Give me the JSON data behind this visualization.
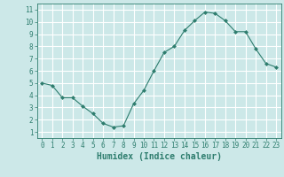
{
  "x": [
    0,
    1,
    2,
    3,
    4,
    5,
    6,
    7,
    8,
    9,
    10,
    11,
    12,
    13,
    14,
    15,
    16,
    17,
    18,
    19,
    20,
    21,
    22,
    23
  ],
  "y": [
    5.0,
    4.8,
    3.8,
    3.8,
    3.1,
    2.5,
    1.7,
    1.4,
    1.5,
    3.3,
    4.4,
    6.0,
    7.5,
    8.0,
    9.3,
    10.1,
    10.8,
    10.7,
    10.1,
    9.2,
    9.2,
    7.8,
    6.6,
    6.3
  ],
  "line_color": "#2e7d6e",
  "marker": "D",
  "marker_size": 2,
  "bg_color": "#cce8e8",
  "grid_color": "#ffffff",
  "xlabel": "Humidex (Indice chaleur)",
  "xlim": [
    -0.5,
    23.5
  ],
  "ylim": [
    0.5,
    11.5
  ],
  "yticks": [
    1,
    2,
    3,
    4,
    5,
    6,
    7,
    8,
    9,
    10,
    11
  ],
  "xticks": [
    0,
    1,
    2,
    3,
    4,
    5,
    6,
    7,
    8,
    9,
    10,
    11,
    12,
    13,
    14,
    15,
    16,
    17,
    18,
    19,
    20,
    21,
    22,
    23
  ],
  "tick_color": "#2e7d6e",
  "label_color": "#2e7d6e",
  "xlabel_fontsize": 7,
  "tick_fontsize": 5.5
}
